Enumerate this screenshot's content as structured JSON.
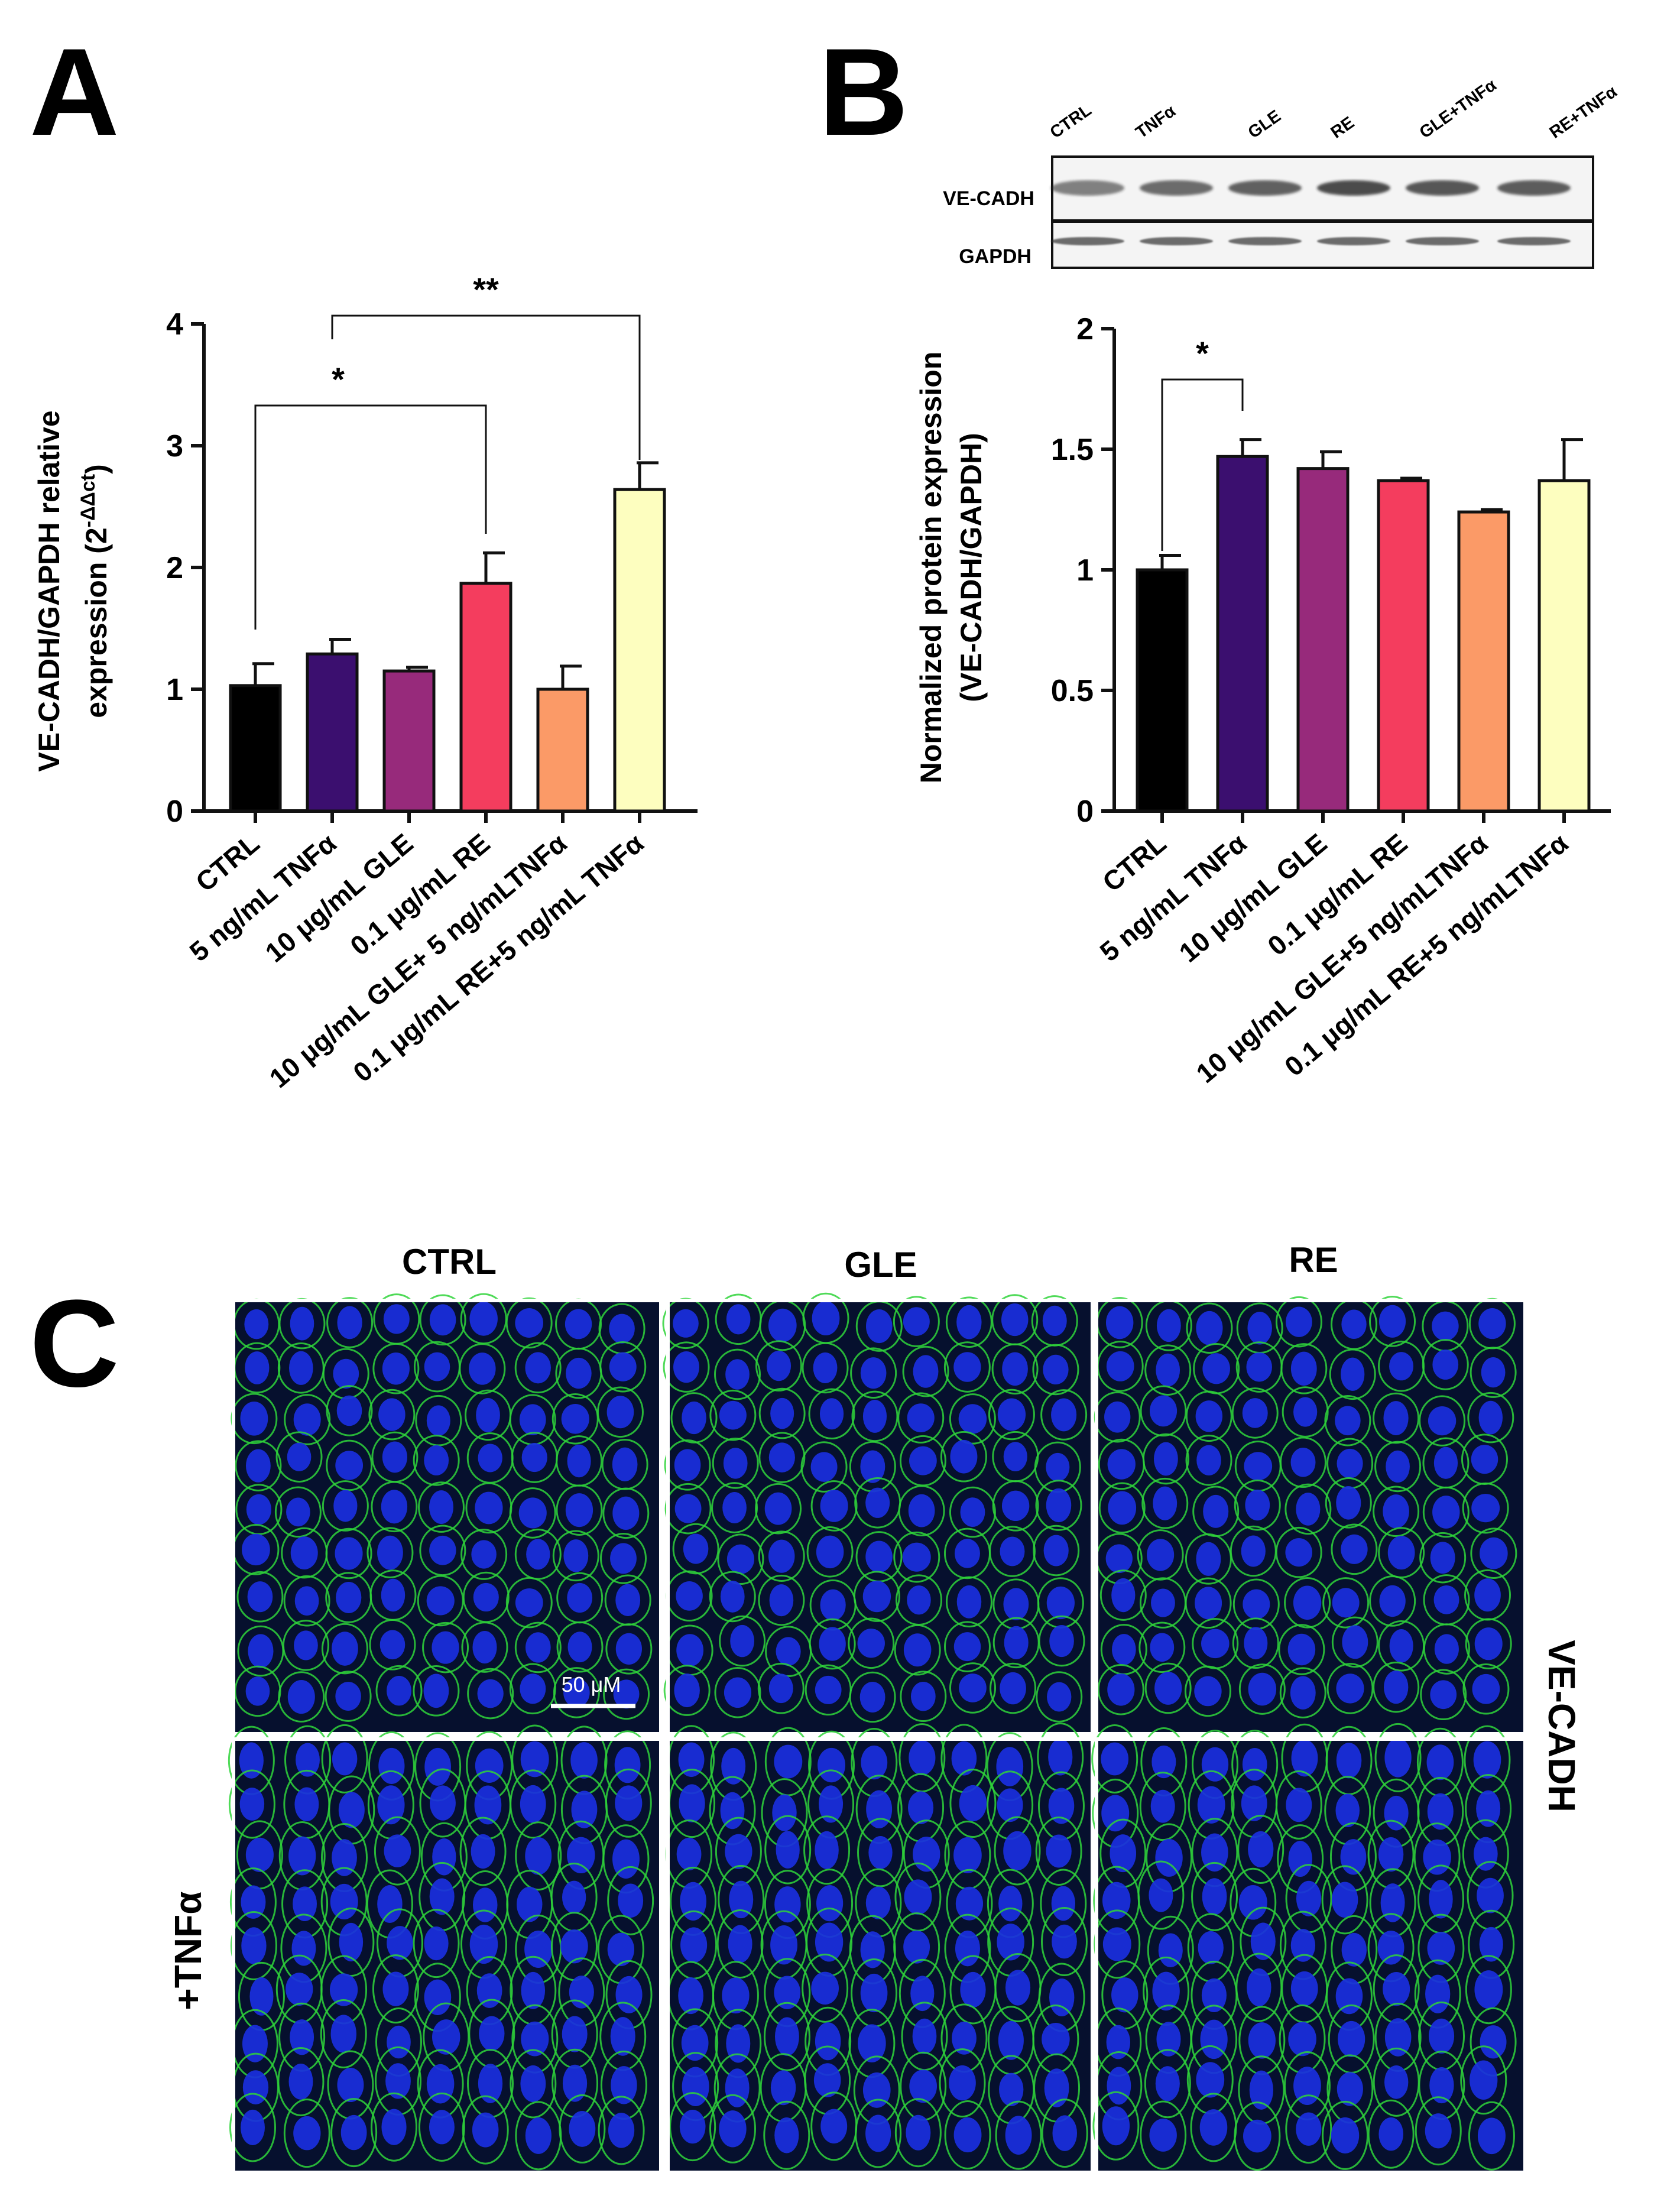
{
  "panels": {
    "a": "A",
    "b": "B",
    "c": "C"
  },
  "chart_data": [
    {
      "type": "bar",
      "panel": "A",
      "ylabel_line1": "VE-CADH/GAPDH relative",
      "ylabel_line2": "expression (2",
      "ylabel_sup": "-ΔΔct",
      "ylabel_close": ")",
      "ylim": [
        0,
        4
      ],
      "yticks": [
        0,
        1,
        2,
        3,
        4
      ],
      "ytick_labels": [
        "0",
        "1",
        "2",
        "3",
        "4"
      ],
      "categories": [
        "CTRL",
        "5 ng/mL TNFα",
        "10 μg/mL GLE",
        "0.1 μg/mL RE",
        "10 μg/mL GLE+ 5 ng/mLTNFα",
        "0.1 μg/mL RE+5 ng/mL TNFα"
      ],
      "values": [
        1.03,
        1.29,
        1.15,
        1.87,
        1.0,
        2.64
      ],
      "errors": [
        0.18,
        0.12,
        0.03,
        0.25,
        0.19,
        0.22
      ],
      "colors": [
        "#000000",
        "#3b0f6f",
        "#972a7b",
        "#f43d5e",
        "#fb9a67",
        "#fdfebf"
      ],
      "significance": [
        {
          "from": 0,
          "to": 3,
          "label": "*"
        },
        {
          "from": 1,
          "to": 5,
          "label": "**"
        }
      ]
    },
    {
      "type": "bar",
      "panel": "B",
      "ylabel_line1": "Normalized protein expression",
      "ylabel_line2": "(VE-CADH/GAPDH)",
      "ylim": [
        0,
        2
      ],
      "yticks": [
        0,
        0.5,
        1,
        1.5,
        2
      ],
      "ytick_labels": [
        "0",
        "0.5",
        "1",
        "1.5",
        "2"
      ],
      "categories": [
        "CTRL",
        "5 ng/mL TNFα",
        "10 μg/mL GLE",
        "0.1 μg/mL RE",
        "10 μg/mL GLE+5 ng/mLTNFα",
        "0.1 μg/mL RE+5 ng/mLTNFα"
      ],
      "values": [
        1.0,
        1.47,
        1.42,
        1.37,
        1.24,
        1.37
      ],
      "errors": [
        0.06,
        0.07,
        0.07,
        0.01,
        0.01,
        0.17
      ],
      "colors": [
        "#000000",
        "#3b0f6f",
        "#972a7b",
        "#f43d5e",
        "#fb9a67",
        "#fdfebf"
      ],
      "significance": [
        {
          "from": 0,
          "to": 1,
          "label": "*"
        }
      ]
    }
  ],
  "blot": {
    "lanes": [
      "CTRL",
      "TNFα",
      "GLE",
      "RE",
      "GLE+TNFα",
      "RE+TNFα"
    ],
    "rows": [
      "VE-CADH",
      "GAPDH"
    ]
  },
  "microscopy": {
    "columns": [
      "CTRL",
      "GLE",
      "RE"
    ],
    "row_label": "+TNFα",
    "stain_label": "VE-CADH",
    "scale_bar": "50 μM",
    "colors": {
      "membrane": "#2fd33a",
      "nuclei": "#1a2fe0",
      "background": "#06102e"
    }
  }
}
